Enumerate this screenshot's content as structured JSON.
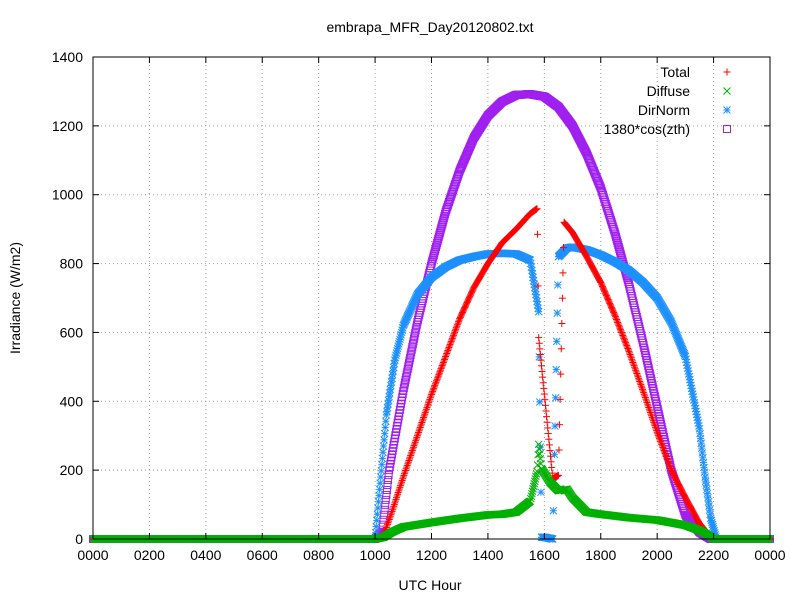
{
  "chart_data": {
    "type": "scatter",
    "title": "embrapa_MFR_Day20120802.txt",
    "xlabel": "UTC Hour",
    "ylabel": "Irradiance (W/m2)",
    "xlim": [
      0,
      24
    ],
    "ylim": [
      0,
      1400
    ],
    "grid": true,
    "legend_position": "top-right",
    "x_tick_labels": [
      "0000",
      "0200",
      "0400",
      "0600",
      "0800",
      "1000",
      "1200",
      "1400",
      "1600",
      "1800",
      "2000",
      "2200",
      "0000"
    ],
    "y_tick_labels": [
      "0",
      "200",
      "400",
      "600",
      "800",
      "1000",
      "1200",
      "1400"
    ],
    "y_ticks": [
      0,
      200,
      400,
      600,
      800,
      1000,
      1200,
      1400
    ],
    "series": [
      {
        "name": "Total",
        "marker": "+",
        "color": "#ff0000",
        "x": [
          0,
          2,
          4,
          6,
          8,
          10,
          10.3,
          10.6,
          11,
          11.5,
          12,
          12.5,
          13,
          13.5,
          14,
          14.5,
          15,
          15.5,
          15.75,
          15.8,
          16.3,
          16.5,
          16.7,
          17,
          17.5,
          18,
          18.5,
          19,
          19.5,
          20,
          20.5,
          21,
          21.5,
          21.8,
          22.0,
          22.3,
          24
        ],
        "y": [
          0,
          0,
          0,
          0,
          0,
          0,
          10,
          80,
          180,
          300,
          420,
          530,
          640,
          730,
          800,
          860,
          900,
          945,
          960,
          585,
          175,
          185,
          920,
          890,
          820,
          745,
          650,
          545,
          430,
          310,
          200,
          120,
          45,
          15,
          0,
          0,
          0
        ]
      },
      {
        "name": "Diffuse",
        "marker": "x",
        "color": "#00b000",
        "x": [
          0,
          2,
          4,
          6,
          8,
          10,
          10.3,
          10.6,
          11,
          12,
          13,
          14,
          14.5,
          15,
          15.5,
          15.75,
          15.8,
          15.9,
          16.2,
          16.5,
          16.8,
          17,
          17.5,
          18,
          19,
          20,
          21,
          21.5,
          21.8,
          22.0,
          22.3,
          24
        ],
        "y": [
          0,
          0,
          0,
          0,
          0,
          0,
          5,
          20,
          35,
          48,
          60,
          70,
          72,
          78,
          110,
          200,
          275,
          205,
          165,
          140,
          145,
          120,
          78,
          72,
          62,
          55,
          40,
          25,
          12,
          0,
          0,
          0
        ]
      },
      {
        "name": "DirNorm",
        "marker": "*",
        "color": "#1e90ff",
        "x": [
          0,
          2,
          4,
          6,
          8,
          10,
          10.2,
          10.4,
          10.7,
          11,
          11.5,
          12,
          12.5,
          13,
          13.5,
          14,
          14.5,
          15,
          15.5,
          15.8,
          15.9,
          16.0,
          16.3,
          16.5,
          16.8,
          17,
          17.5,
          18,
          18.5,
          19,
          19.5,
          20,
          20.5,
          21,
          21.5,
          21.7,
          21.9,
          22.1,
          22.3,
          24
        ],
        "y": [
          0,
          0,
          0,
          0,
          0,
          0,
          180,
          360,
          520,
          620,
          710,
          760,
          790,
          810,
          820,
          828,
          830,
          828,
          810,
          660,
          5,
          5,
          0,
          820,
          845,
          848,
          840,
          825,
          805,
          780,
          745,
          700,
          630,
          530,
          320,
          180,
          60,
          0,
          0,
          0
        ]
      },
      {
        "name": "1380*cos(zth)",
        "marker": "square",
        "color": "#a020f0",
        "x": [
          0,
          2,
          4,
          6,
          8,
          10,
          10.25,
          10.5,
          11,
          11.5,
          12,
          12.5,
          13,
          13.5,
          14,
          14.5,
          15,
          15.5,
          16,
          16.5,
          17,
          17.5,
          18,
          18.5,
          19,
          19.5,
          20,
          20.5,
          21,
          21.5,
          21.9,
          22.2,
          24
        ],
        "y": [
          0,
          0,
          0,
          0,
          0,
          0,
          20,
          200,
          430,
          630,
          800,
          950,
          1070,
          1165,
          1230,
          1270,
          1290,
          1292,
          1285,
          1255,
          1200,
          1120,
          1020,
          890,
          740,
          570,
          385,
          200,
          70,
          20,
          0,
          0,
          0
        ]
      }
    ]
  }
}
